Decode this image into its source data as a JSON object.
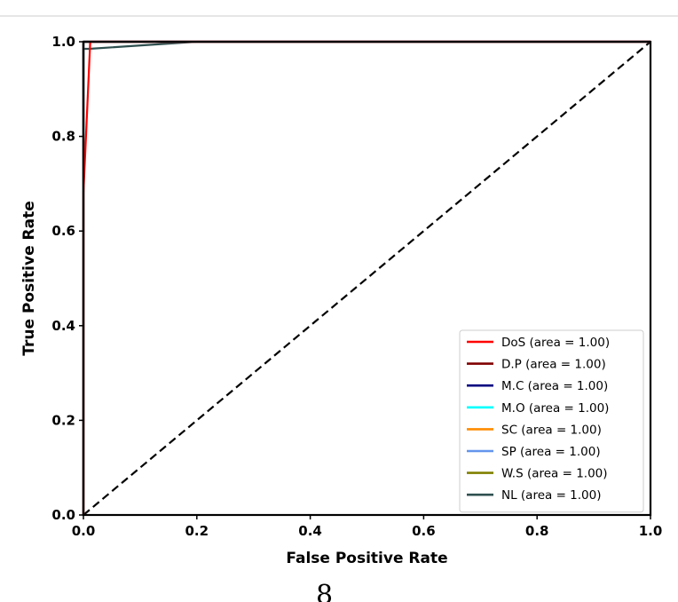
{
  "page_mark": "8",
  "chart_data": {
    "type": "line",
    "title": "",
    "xlabel": "False Positive Rate",
    "ylabel": "True Positive Rate",
    "xlim": [
      0.0,
      1.0
    ],
    "ylim": [
      0.0,
      1.0
    ],
    "xticks": [
      "0.0",
      "0.2",
      "0.4",
      "0.6",
      "0.8",
      "1.0"
    ],
    "yticks": [
      "0.0",
      "0.2",
      "0.4",
      "0.6",
      "0.8",
      "1.0"
    ],
    "grid": false,
    "legend_position": "lower-right",
    "series": [
      {
        "name": "DoS (area = 1.00)",
        "color": "#ff0000",
        "x": [
          0.0,
          0.0,
          0.012,
          0.012,
          1.0
        ],
        "y": [
          0.0,
          0.68,
          1.0,
          1.0,
          1.0
        ]
      },
      {
        "name": "D.P (area = 1.00)",
        "color": "#800000",
        "x": [
          0.0,
          0.0,
          1.0
        ],
        "y": [
          0.0,
          1.0,
          1.0
        ]
      },
      {
        "name": "M.C (area = 1.00)",
        "color": "#000080",
        "x": [
          0.0,
          0.0,
          1.0
        ],
        "y": [
          0.0,
          1.0,
          1.0
        ]
      },
      {
        "name": "M.O (area = 1.00)",
        "color": "#00ffff",
        "x": [
          0.0,
          0.0,
          1.0
        ],
        "y": [
          0.0,
          1.0,
          1.0
        ]
      },
      {
        "name": "SC (area = 1.00)",
        "color": "#ff8c00",
        "x": [
          0.0,
          0.0,
          1.0
        ],
        "y": [
          0.0,
          1.0,
          1.0
        ]
      },
      {
        "name": "SP (area = 1.00)",
        "color": "#6495ed",
        "x": [
          0.0,
          0.0,
          1.0
        ],
        "y": [
          0.0,
          1.0,
          1.0
        ]
      },
      {
        "name": "W.S (area = 1.00)",
        "color": "#808000",
        "x": [
          0.0,
          0.0,
          1.0
        ],
        "y": [
          0.0,
          1.0,
          1.0
        ]
      },
      {
        "name": "NL (area = 1.00)",
        "color": "#2f4f4f",
        "x": [
          0.0,
          0.0,
          0.01,
          0.2,
          1.0
        ],
        "y": [
          0.0,
          0.985,
          0.985,
          1.0,
          1.0
        ]
      }
    ],
    "reference_line": {
      "x": [
        0.0,
        1.0
      ],
      "y": [
        0.0,
        1.0
      ],
      "style": "dashed",
      "color": "#000000"
    }
  }
}
